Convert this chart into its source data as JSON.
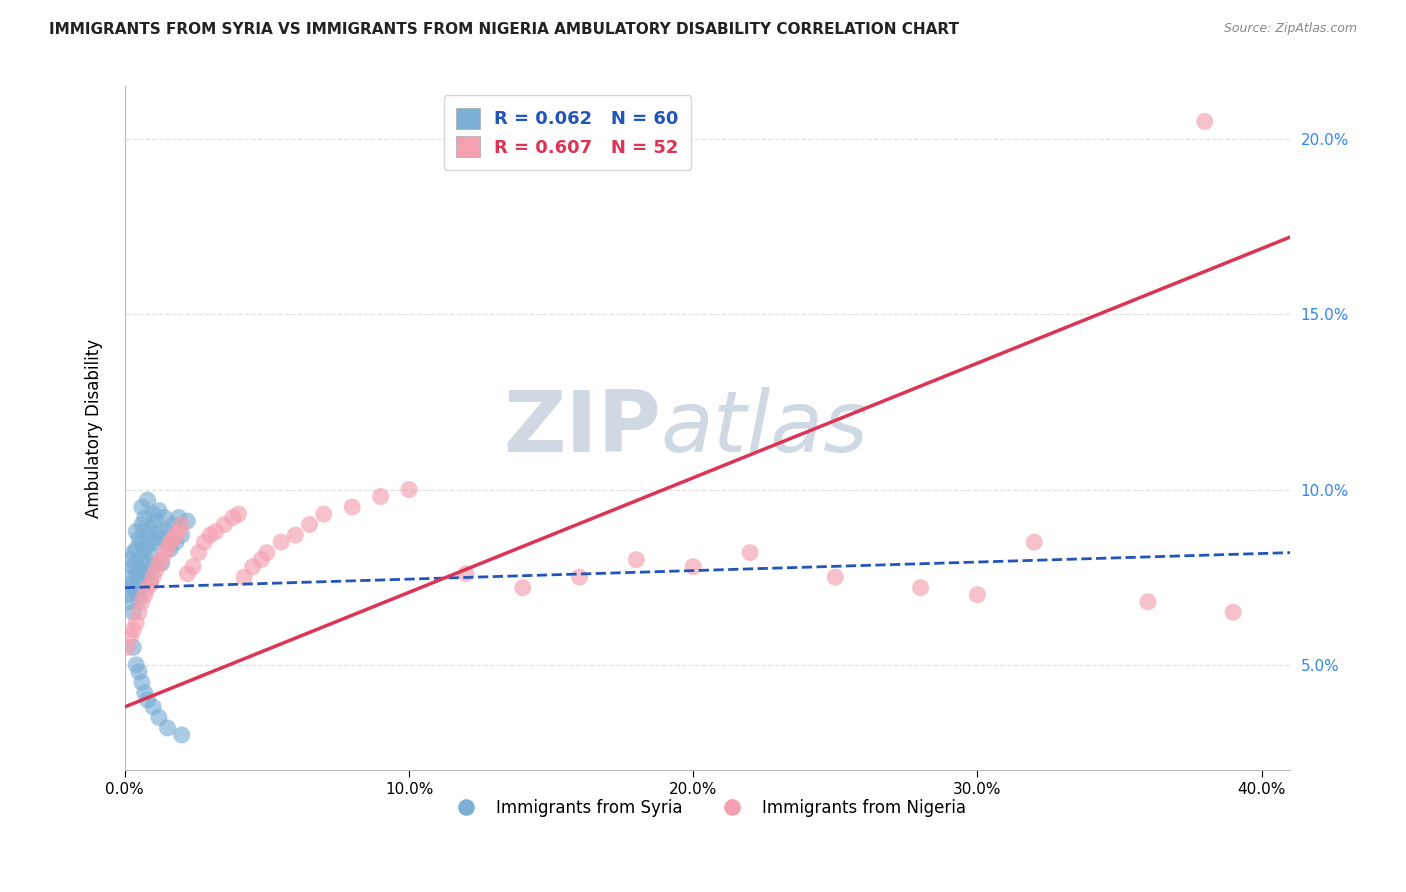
{
  "title": "IMMIGRANTS FROM SYRIA VS IMMIGRANTS FROM NIGERIA AMBULATORY DISABILITY CORRELATION CHART",
  "source": "Source: ZipAtlas.com",
  "ylabel": "Ambulatory Disability",
  "legend_syria": "Immigrants from Syria",
  "legend_nigeria": "Immigrants from Nigeria",
  "R_syria": 0.062,
  "N_syria": 60,
  "R_nigeria": 0.607,
  "N_nigeria": 52,
  "xlim": [
    0.0,
    0.41
  ],
  "ylim": [
    0.02,
    0.215
  ],
  "xticks": [
    0.0,
    0.1,
    0.2,
    0.3,
    0.4
  ],
  "yticks_right": [
    0.05,
    0.1,
    0.15,
    0.2
  ],
  "color_syria": "#7BAFD4",
  "color_nigeria": "#F4A0B0",
  "trend_color_syria": "#2255BB",
  "trend_color_nigeria": "#DD3355",
  "syria_x": [
    0.001,
    0.001,
    0.002,
    0.002,
    0.002,
    0.003,
    0.003,
    0.003,
    0.003,
    0.004,
    0.004,
    0.004,
    0.004,
    0.004,
    0.005,
    0.005,
    0.005,
    0.005,
    0.006,
    0.006,
    0.006,
    0.006,
    0.006,
    0.007,
    0.007,
    0.007,
    0.007,
    0.008,
    0.008,
    0.008,
    0.009,
    0.009,
    0.009,
    0.01,
    0.01,
    0.01,
    0.011,
    0.011,
    0.012,
    0.012,
    0.013,
    0.013,
    0.014,
    0.015,
    0.016,
    0.017,
    0.018,
    0.019,
    0.02,
    0.022,
    0.003,
    0.004,
    0.005,
    0.006,
    0.007,
    0.008,
    0.01,
    0.012,
    0.015,
    0.02
  ],
  "syria_y": [
    0.075,
    0.07,
    0.08,
    0.073,
    0.068,
    0.078,
    0.082,
    0.072,
    0.065,
    0.076,
    0.088,
    0.079,
    0.071,
    0.083,
    0.074,
    0.086,
    0.077,
    0.069,
    0.085,
    0.09,
    0.073,
    0.08,
    0.095,
    0.076,
    0.088,
    0.083,
    0.092,
    0.084,
    0.079,
    0.097,
    0.074,
    0.089,
    0.082,
    0.093,
    0.086,
    0.078,
    0.091,
    0.085,
    0.088,
    0.094,
    0.086,
    0.079,
    0.092,
    0.088,
    0.083,
    0.09,
    0.085,
    0.092,
    0.087,
    0.091,
    0.055,
    0.05,
    0.048,
    0.045,
    0.042,
    0.04,
    0.038,
    0.035,
    0.032,
    0.03
  ],
  "nigeria_x": [
    0.001,
    0.002,
    0.003,
    0.004,
    0.005,
    0.006,
    0.007,
    0.008,
    0.009,
    0.01,
    0.011,
    0.012,
    0.013,
    0.014,
    0.015,
    0.016,
    0.017,
    0.018,
    0.019,
    0.02,
    0.022,
    0.024,
    0.026,
    0.028,
    0.03,
    0.032,
    0.035,
    0.038,
    0.04,
    0.042,
    0.045,
    0.048,
    0.05,
    0.055,
    0.06,
    0.065,
    0.07,
    0.08,
    0.09,
    0.1,
    0.12,
    0.14,
    0.16,
    0.18,
    0.2,
    0.22,
    0.25,
    0.28,
    0.3,
    0.32,
    0.36,
    0.39
  ],
  "nigeria_y": [
    0.055,
    0.058,
    0.06,
    0.062,
    0.065,
    0.068,
    0.07,
    0.072,
    0.073,
    0.075,
    0.077,
    0.079,
    0.08,
    0.082,
    0.083,
    0.085,
    0.086,
    0.087,
    0.088,
    0.09,
    0.076,
    0.078,
    0.082,
    0.085,
    0.087,
    0.088,
    0.09,
    0.092,
    0.093,
    0.075,
    0.078,
    0.08,
    0.082,
    0.085,
    0.087,
    0.09,
    0.093,
    0.095,
    0.098,
    0.1,
    0.076,
    0.072,
    0.075,
    0.08,
    0.078,
    0.082,
    0.075,
    0.072,
    0.07,
    0.085,
    0.068,
    0.065
  ],
  "nigeria_outlier_x": [
    0.38
  ],
  "nigeria_outlier_y": [
    0.205
  ],
  "trend_syria_x0": 0.0,
  "trend_syria_y0": 0.072,
  "trend_syria_x1": 0.41,
  "trend_syria_y1": 0.082,
  "trend_nigeria_x0": 0.0,
  "trend_nigeria_y0": 0.038,
  "trend_nigeria_x1": 0.41,
  "trend_nigeria_y1": 0.172,
  "watermark_top": "ZIP",
  "watermark_bot": "atlas",
  "watermark_color": "#AABBCC",
  "background_color": "#FFFFFF",
  "grid_color": "#DDDDDD"
}
